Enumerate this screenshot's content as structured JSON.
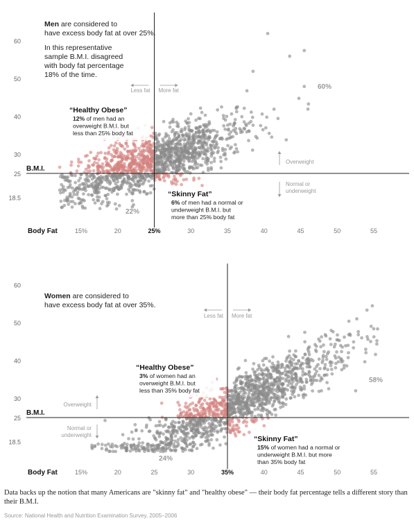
{
  "caption": "Data backs up the notion that many Americans are \"skinny fat\" and \"healthy obese\" — their body fat percentage tells a different story than their B.M.I.",
  "source": "Source: National Health and Nutrition Examination Survey, 2005–2006",
  "chart_data": [
    {
      "type": "scatter",
      "group": "Men",
      "xlabel": "Body Fat",
      "ylabel": "B.M.I.",
      "x_ticks": [
        15,
        20,
        25,
        30,
        35,
        40,
        45,
        50,
        55
      ],
      "x_tick_labels": [
        "15%",
        "20",
        "25%",
        "30",
        "35",
        "40",
        "45",
        "50",
        "55"
      ],
      "y_ticks": [
        18.5,
        25,
        30,
        40,
        50,
        60
      ],
      "y_tick_labels": [
        "18.5",
        "25",
        "30",
        "40",
        "50",
        "60"
      ],
      "xlim": [
        11,
        57
      ],
      "ylim": [
        13,
        64
      ],
      "threshold_x": 25,
      "threshold_y": 25,
      "note_bold": "Men",
      "note_text": " are considered to have excess body fat at over 25%.",
      "note_text2": "In this representative sample B.M.I. disagreed with body fat percentage 18% of the time.",
      "less_fat": "Less fat",
      "more_fat": "More fat",
      "overweight": "Overweight",
      "normal_underweight": "Normal or underweight",
      "healthy_obese_title": "“Healthy Obese”",
      "healthy_obese_bold": "12%",
      "healthy_obese_text": " of men had an overweight B.M.I. but less than 25% body fat",
      "skinny_fat_title": "“Skinny Fat”",
      "skinny_fat_bold": "6%",
      "skinny_fat_text": " of men had a normal or underweight B.M.I. but more than 25% body fat",
      "pct_upper_right": "60%",
      "pct_lower_left": "22%",
      "point_count": 1500,
      "colors": {
        "agree": "#8a8a8a",
        "disagree": "#d4827f"
      }
    },
    {
      "type": "scatter",
      "group": "Women",
      "xlabel": "Body Fat",
      "ylabel": "B.M.I.",
      "x_ticks": [
        15,
        20,
        25,
        30,
        35,
        40,
        45,
        50,
        55
      ],
      "x_tick_labels": [
        "15%",
        "20",
        "25",
        "30",
        "35%",
        "40",
        "45",
        "50",
        "55"
      ],
      "y_ticks": [
        18.5,
        25,
        30,
        40,
        50,
        60
      ],
      "y_tick_labels": [
        "18.5",
        "25",
        "30",
        "40",
        "50",
        "60"
      ],
      "xlim": [
        11,
        57
      ],
      "ylim": [
        13,
        64
      ],
      "threshold_x": 35,
      "threshold_y": 25,
      "note_bold": "Women",
      "note_text": " are considered to have excess body fat at over 35%.",
      "note_text2": "",
      "less_fat": "Less fat",
      "more_fat": "More fat",
      "overweight": "Overweight",
      "normal_underweight": "Normal or underweight",
      "healthy_obese_title": "“Healthy Obese”",
      "healthy_obese_bold": "3%",
      "healthy_obese_text": " of women had an overweight B.M.I. but less than 35% body fat",
      "skinny_fat_title": "“Skinny Fat”",
      "skinny_fat_bold": "15%",
      "skinny_fat_text": " of women had a normal or underweight B.M.I. but more than 35% body fat",
      "pct_upper_right": "58%",
      "pct_lower_left": "24%",
      "point_count": 1500,
      "colors": {
        "agree": "#8a8a8a",
        "disagree": "#d4827f"
      }
    }
  ]
}
